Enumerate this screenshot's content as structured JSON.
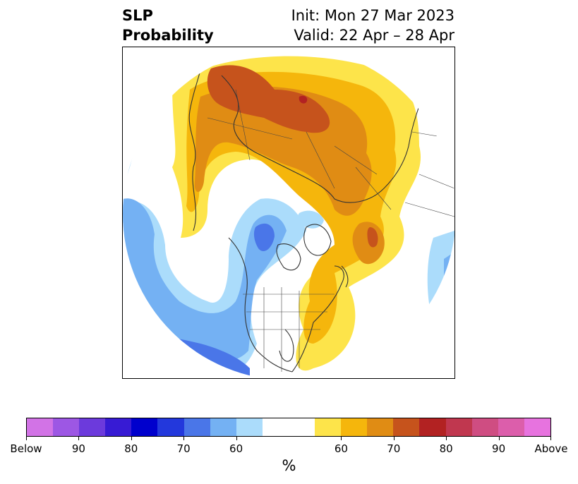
{
  "title": {
    "left_line1": "SLP",
    "left_line2": "Probability",
    "right_line1": "Init: Mon 27 Mar 2023",
    "right_line2": "Valid: 22 Apr – 28 Apr"
  },
  "map": {
    "projection": "north-polar-stereographic",
    "region": "Northern Hemisphere",
    "colors": {
      "above_60": "#fde44a",
      "above_65": "#f5b60c",
      "above_70": "#e08c14",
      "above_75": "#c6531c",
      "above_80": "#b22222",
      "below_60": "#abdcfb",
      "below_65": "#74b1f3",
      "below_70": "#4a76e8",
      "neutral": "#ffffff",
      "coastline": "#333333"
    }
  },
  "colorbar": {
    "colors": [
      "#d273e6",
      "#9d57e4",
      "#6c3adc",
      "#371bd4",
      "#0000cd",
      "#2338dc",
      "#4a76e8",
      "#74b1f3",
      "#abdcfb",
      "#ffffff",
      "#ffffff",
      "#fde44a",
      "#f5b60c",
      "#e08c14",
      "#c6531c",
      "#b22222",
      "#c0374f",
      "#cf4d82",
      "#dc5eab",
      "#e773df"
    ],
    "tick_labels": [
      "Below",
      "90",
      "80",
      "70",
      "60",
      "60",
      "70",
      "80",
      "90",
      "Above"
    ],
    "unit": "%"
  }
}
